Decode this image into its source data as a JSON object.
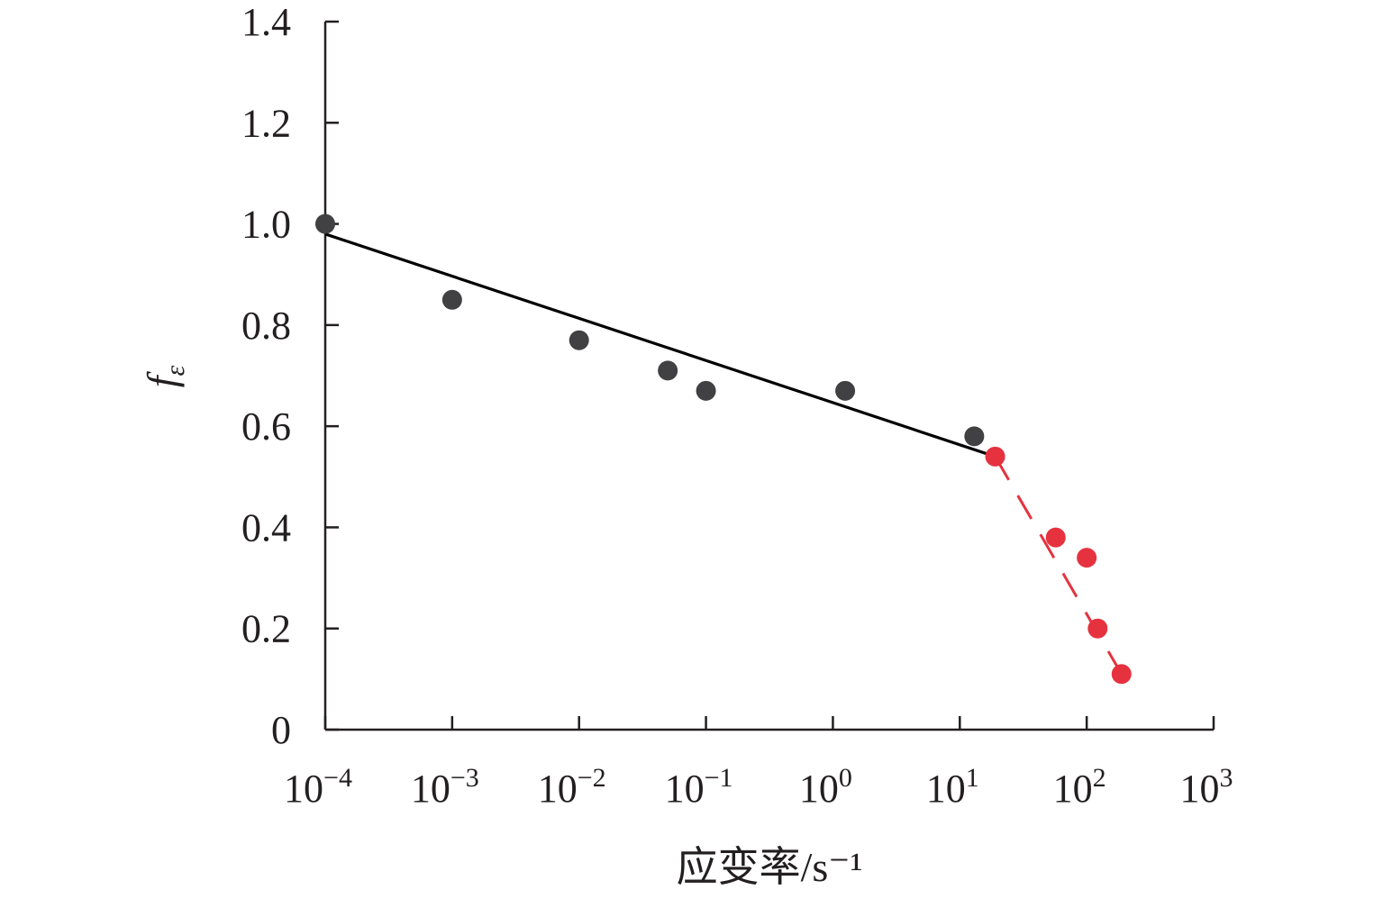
{
  "chart_data": {
    "type": "scatter",
    "title": "",
    "xlabel": "应变率/s⁻¹",
    "ylabel": "fε",
    "ylabel_main": "f",
    "ylabel_sub": "ε",
    "x_scale": "log",
    "xlim": [
      0.0001,
      1000
    ],
    "ylim": [
      0,
      1.4
    ],
    "grid": false,
    "x_ticks": [
      {
        "value": 0.0001,
        "base": "10",
        "exp": "−4"
      },
      {
        "value": 0.001,
        "base": "10",
        "exp": "−3"
      },
      {
        "value": 0.01,
        "base": "10",
        "exp": "−2"
      },
      {
        "value": 0.1,
        "base": "10",
        "exp": "−1"
      },
      {
        "value": 1,
        "base": "10",
        "exp": "0"
      },
      {
        "value": 10,
        "base": "10",
        "exp": "1"
      },
      {
        "value": 100,
        "base": "10",
        "exp": "2"
      },
      {
        "value": 1000,
        "base": "10",
        "exp": "3"
      }
    ],
    "y_ticks": [
      {
        "value": 0,
        "label": "0"
      },
      {
        "value": 0.2,
        "label": "0.2"
      },
      {
        "value": 0.4,
        "label": "0.4"
      },
      {
        "value": 0.6,
        "label": "0.6"
      },
      {
        "value": 0.8,
        "label": "0.8"
      },
      {
        "value": 1.0,
        "label": "1.0"
      },
      {
        "value": 1.2,
        "label": "1.2"
      },
      {
        "value": 1.4,
        "label": "1.4"
      }
    ],
    "series": [
      {
        "color": "#414042",
        "points": [
          {
            "x": 0.0001,
            "y": 1.0
          },
          {
            "x": 0.001,
            "y": 0.85
          },
          {
            "x": 0.01,
            "y": 0.77
          },
          {
            "x": 0.05,
            "y": 0.71
          },
          {
            "x": 0.1,
            "y": 0.67
          },
          {
            "x": 1.25,
            "y": 0.67
          },
          {
            "x": 13,
            "y": 0.58
          }
        ],
        "fit_line": {
          "style": "solid",
          "color": "#000000",
          "points": [
            {
              "x": 0.0001,
              "y": 0.98
            },
            {
              "x": 19,
              "y": 0.54
            }
          ]
        }
      },
      {
        "color": "#e6323f",
        "points": [
          {
            "x": 19,
            "y": 0.54
          },
          {
            "x": 57,
            "y": 0.38
          },
          {
            "x": 100,
            "y": 0.34
          },
          {
            "x": 122,
            "y": 0.2
          },
          {
            "x": 188,
            "y": 0.11
          }
        ],
        "fit_line": {
          "style": "dashed",
          "color": "#e6323f",
          "points": [
            {
              "x": 19,
              "y": 0.54
            },
            {
              "x": 188,
              "y": 0.11
            }
          ]
        }
      }
    ]
  }
}
